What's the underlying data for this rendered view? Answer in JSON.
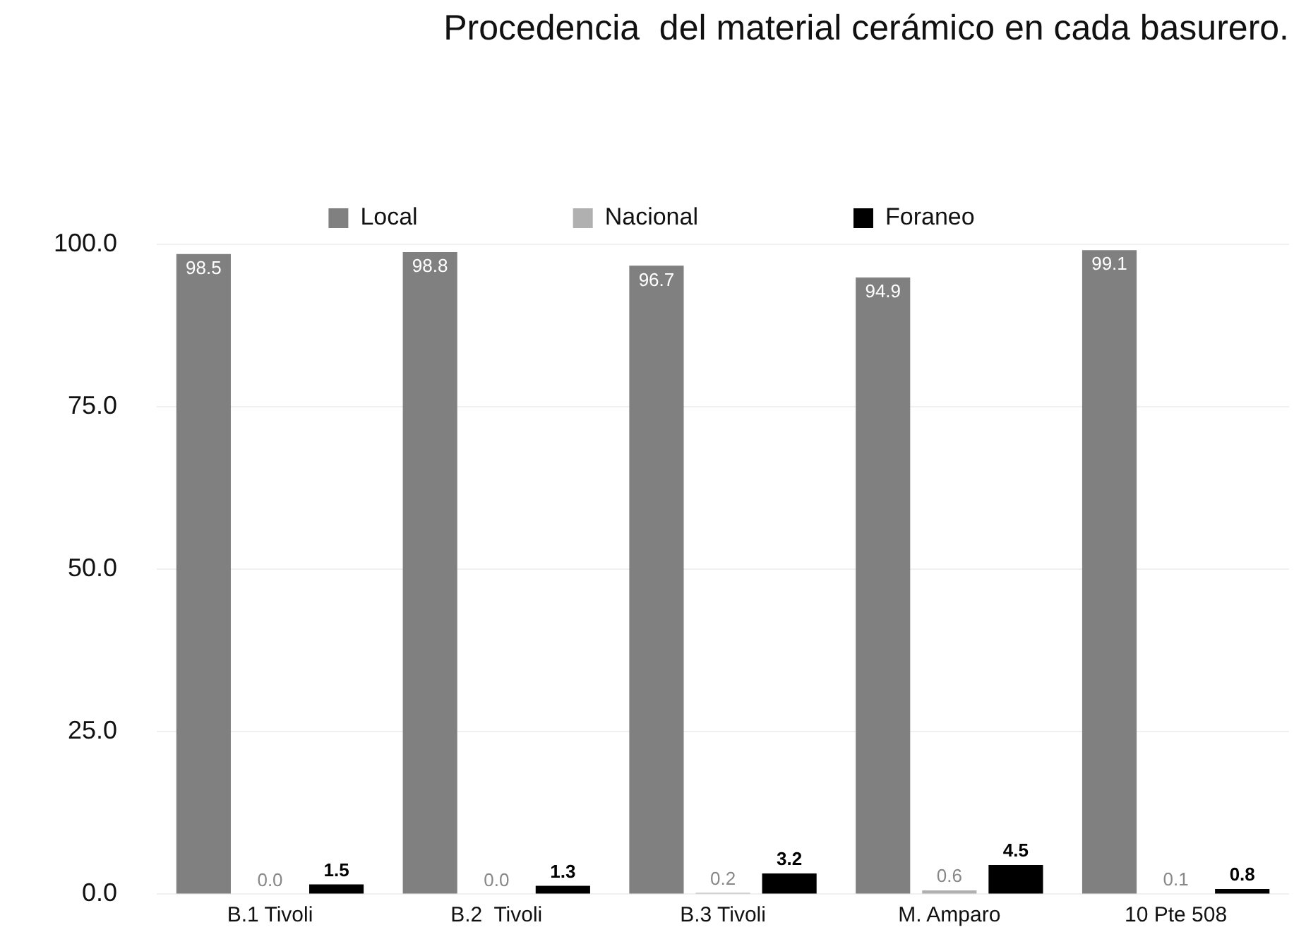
{
  "chart_data": {
    "type": "bar",
    "title": "Procedencia  del material cerámico en cada basurero.",
    "categories": [
      "B.1 Tivoli",
      "B.2  Tivoli",
      "B.3 Tivoli",
      "M. Amparo",
      "10 Pte 508"
    ],
    "series": [
      {
        "name": "Local",
        "color": "#808080",
        "values": [
          98.5,
          98.8,
          96.7,
          94.9,
          99.1
        ],
        "value_labels": [
          "98.5",
          "98.8",
          "96.7",
          "94.9",
          "99.1"
        ]
      },
      {
        "name": "Nacional",
        "color": "#b0b0b0",
        "values": [
          0.0,
          0.0,
          0.2,
          0.6,
          0.1
        ],
        "value_labels": [
          "0.0",
          "0.0",
          "0.2",
          "0.6",
          "0.1"
        ]
      },
      {
        "name": "Foraneo",
        "color": "#000000",
        "values": [
          1.5,
          1.3,
          3.2,
          4.5,
          0.8
        ],
        "value_labels": [
          "1.5",
          "1.3",
          "3.2",
          "4.5",
          "0.8"
        ]
      }
    ],
    "ylim": [
      0,
      100
    ],
    "yticks": [
      {
        "value": 0,
        "label": "0.0"
      },
      {
        "value": 25,
        "label": "25.0"
      },
      {
        "value": 50,
        "label": "50.0"
      },
      {
        "value": 75,
        "label": "75.0"
      },
      {
        "value": 100,
        "label": "100.0"
      }
    ],
    "grid": "y",
    "legend": "top"
  }
}
